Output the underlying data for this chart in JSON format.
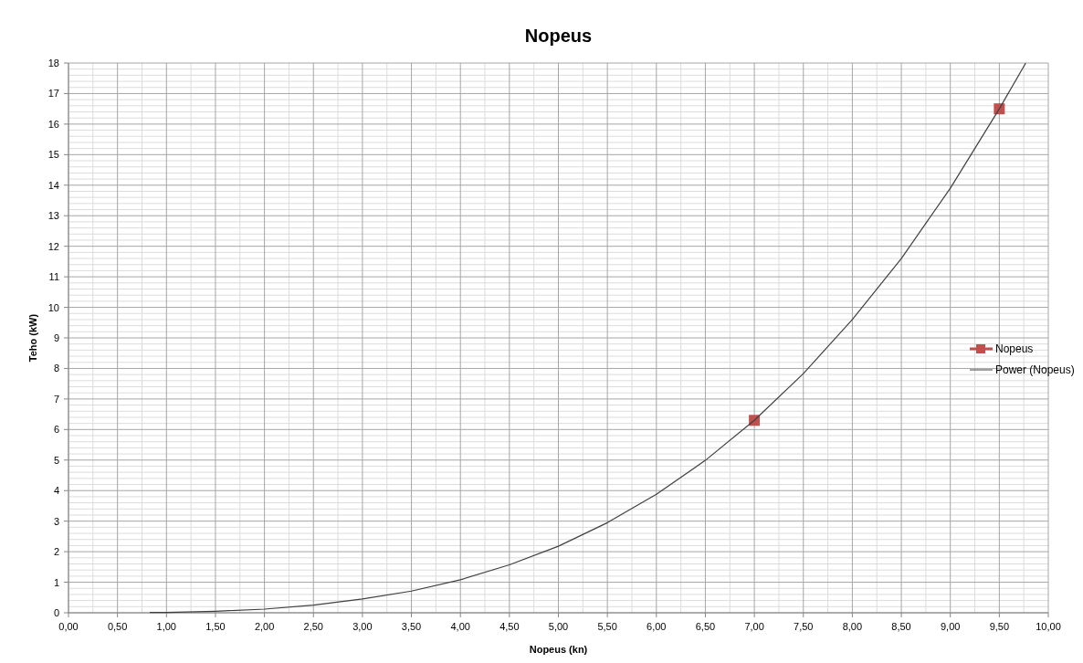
{
  "chart_data": {
    "type": "scatter",
    "title": "Nopeus",
    "xlabel": "Nopeus (kn)",
    "ylabel": "Teho (kW)",
    "xlim": [
      0,
      10
    ],
    "ylim": [
      0,
      18
    ],
    "xticks": [
      {
        "value": 0,
        "label": "0,00"
      },
      {
        "value": 0.5,
        "label": "0,50"
      },
      {
        "value": 1,
        "label": "1,00"
      },
      {
        "value": 1.5,
        "label": "1,50"
      },
      {
        "value": 2,
        "label": "2,00"
      },
      {
        "value": 2.5,
        "label": "2,50"
      },
      {
        "value": 3,
        "label": "3,00"
      },
      {
        "value": 3.5,
        "label": "3,50"
      },
      {
        "value": 4,
        "label": "4,00"
      },
      {
        "value": 4.5,
        "label": "4,50"
      },
      {
        "value": 5,
        "label": "5,00"
      },
      {
        "value": 5.5,
        "label": "5,50"
      },
      {
        "value": 6,
        "label": "6,00"
      },
      {
        "value": 6.5,
        "label": "6,50"
      },
      {
        "value": 7,
        "label": "7,00"
      },
      {
        "value": 7.5,
        "label": "7,50"
      },
      {
        "value": 8,
        "label": "8,00"
      },
      {
        "value": 8.5,
        "label": "8,50"
      },
      {
        "value": 9,
        "label": "9,00"
      },
      {
        "value": 9.5,
        "label": "9,50"
      },
      {
        "value": 10,
        "label": "10,00"
      }
    ],
    "yticks": [
      0,
      1,
      2,
      3,
      4,
      5,
      6,
      7,
      8,
      9,
      10,
      11,
      12,
      13,
      14,
      15,
      16,
      17,
      18
    ],
    "grid": true,
    "legend": "right",
    "series": [
      {
        "name": "Nopeus",
        "marker": "square",
        "color": "#c0504d",
        "x": [
          7,
          9.5
        ],
        "values": [
          6.3,
          16.5
        ]
      },
      {
        "name": "Power (Nopeus)",
        "type": "line",
        "marker": "none",
        "line_style": "solid",
        "color": "#404040",
        "x": [
          0.83,
          1,
          1.5,
          2,
          2.5,
          3,
          3.5,
          4,
          4.5,
          5,
          5.5,
          6,
          6.5,
          7,
          7.5,
          8,
          8.5,
          9,
          9.5,
          9.77
        ],
        "values": [
          0.01,
          0.01,
          0.05,
          0.12,
          0.25,
          0.45,
          0.71,
          1.08,
          1.57,
          2.18,
          2.95,
          3.88,
          4.99,
          6.3,
          7.83,
          9.6,
          11.6,
          13.9,
          16.5,
          18
        ]
      }
    ]
  }
}
